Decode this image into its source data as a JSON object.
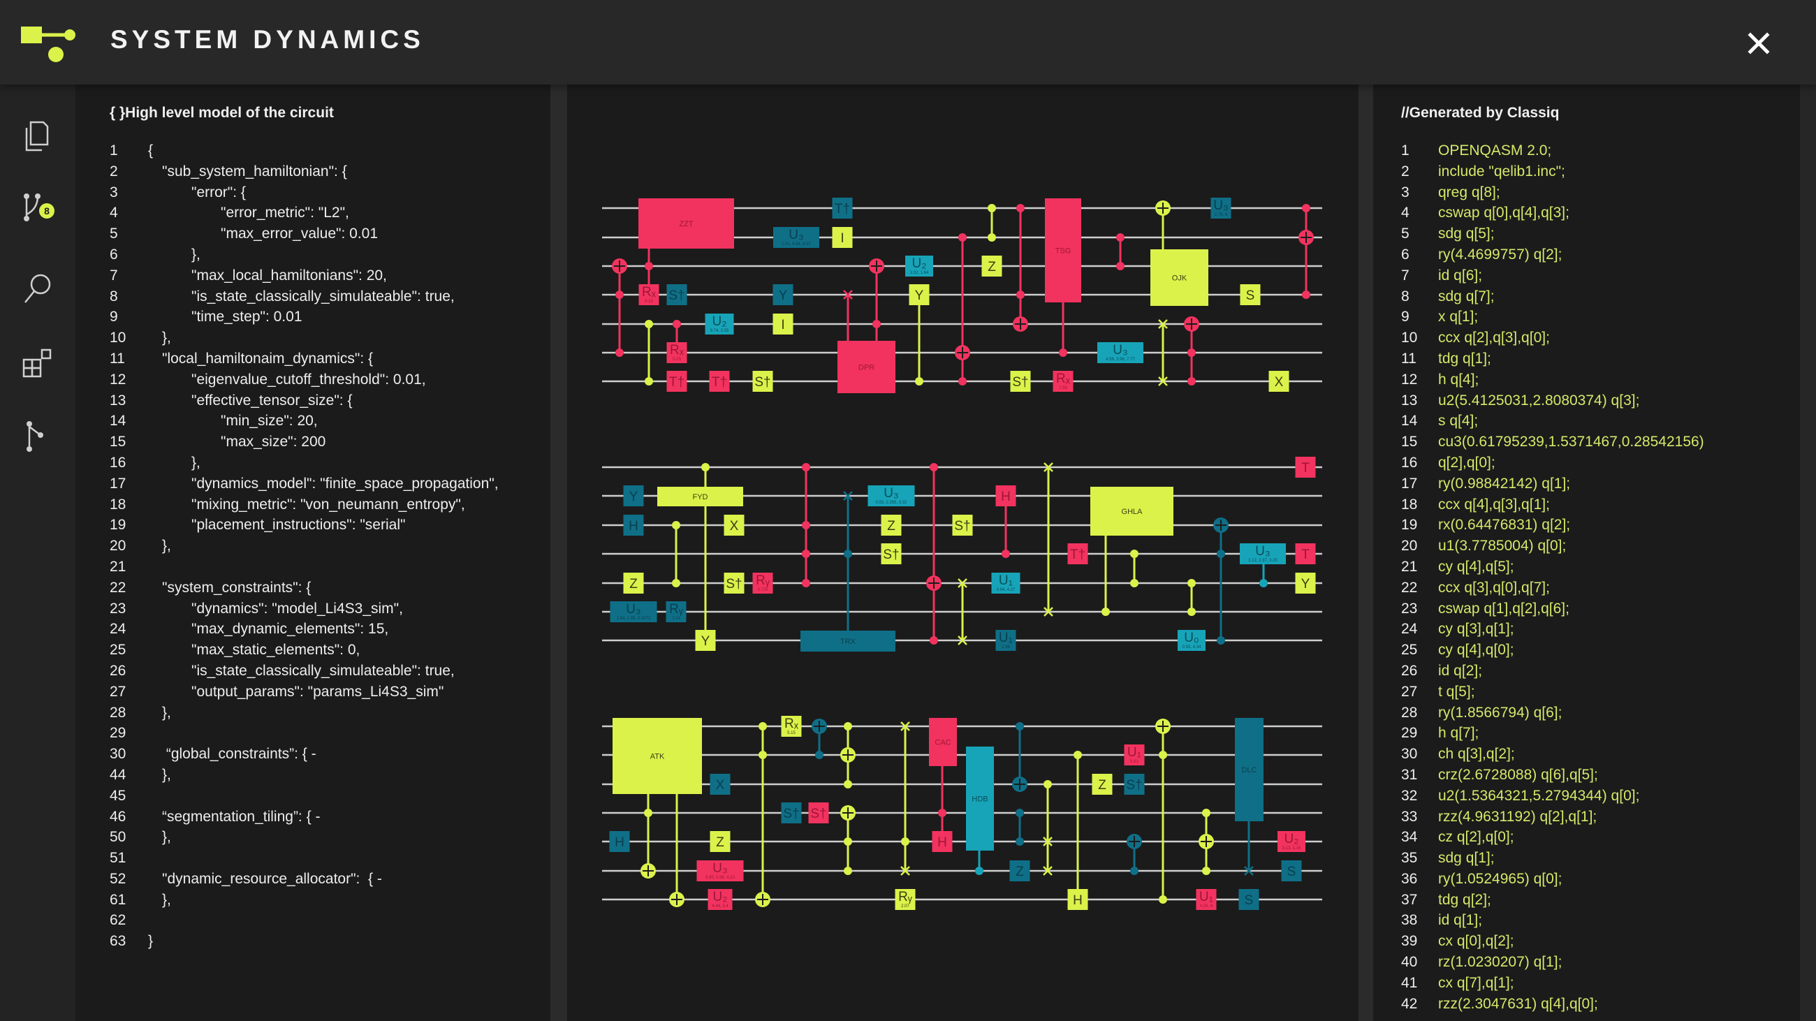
{
  "app": {
    "title": "SYSTEM DYNAMICS",
    "close_icon": "close-icon"
  },
  "colors": {
    "accent": "#dbf24a",
    "pink": "#f2335f",
    "lime": "#dbf24a",
    "teal": "#0f6f87",
    "cyan": "#17a4b8"
  },
  "sidebar": {
    "items": [
      {
        "name": "documents",
        "icon": "documents-icon"
      },
      {
        "name": "branches",
        "icon": "branch-icon",
        "badge": "8"
      },
      {
        "name": "search",
        "icon": "search-icon"
      },
      {
        "name": "widgets",
        "icon": "widgets-icon"
      },
      {
        "name": "fork",
        "icon": "fork-icon"
      }
    ]
  },
  "left_panel": {
    "title": "{ }High level model of the circuit",
    "lines": [
      {
        "n": "1",
        "indent": 0,
        "text": "{"
      },
      {
        "n": "2",
        "indent": 1,
        "text": "\"sub_system_hamiltonian\": {"
      },
      {
        "n": "3",
        "indent": 2,
        "text": "\"error\": {"
      },
      {
        "n": "4",
        "indent": 3,
        "text": "\"error_metric\": \"L2\","
      },
      {
        "n": "5",
        "indent": 3,
        "text": "\"max_error_value\": 0.01"
      },
      {
        "n": "6",
        "indent": 2,
        "text": "},"
      },
      {
        "n": "7",
        "indent": 2,
        "text": "\"max_local_hamiltonians\": 20,"
      },
      {
        "n": "8",
        "indent": 2,
        "text": "\"is_state_classically_simulateable\": true,"
      },
      {
        "n": "9",
        "indent": 2,
        "text": "\"time_step\": 0.01"
      },
      {
        "n": "10",
        "indent": 1,
        "text": "},"
      },
      {
        "n": "11",
        "indent": 1,
        "text": "\"local_hamiltonaim_dynamics\": {"
      },
      {
        "n": "12",
        "indent": 2,
        "text": "\"eigenvalue_cutoff_threshold\": 0.01,"
      },
      {
        "n": "13",
        "indent": 2,
        "text": "\"effective_tensor_size\": {"
      },
      {
        "n": "14",
        "indent": 3,
        "text": "\"min_size\": 20,"
      },
      {
        "n": "15",
        "indent": 3,
        "text": "\"max_size\": 200"
      },
      {
        "n": "16",
        "indent": 2,
        "text": "},"
      },
      {
        "n": "17",
        "indent": 2,
        "text": "\"dynamics_model\": \"finite_space_propagation\","
      },
      {
        "n": "18",
        "indent": 2,
        "text": "\"mixing_metric\": \"von_neumann_entropy\","
      },
      {
        "n": "19",
        "indent": 2,
        "text": "\"placement_instructions\": \"serial\""
      },
      {
        "n": "20",
        "indent": 1,
        "text": "},"
      },
      {
        "n": "21",
        "indent": 1,
        "text": ""
      },
      {
        "n": "22",
        "indent": 1,
        "text": "\"system_constraints\": {"
      },
      {
        "n": "23",
        "indent": 2,
        "text": "\"dynamics\": \"model_Li4S3_sim\","
      },
      {
        "n": "24",
        "indent": 2,
        "text": "\"max_dynamic_elements\": 15,"
      },
      {
        "n": "25",
        "indent": 2,
        "text": "\"max_static_elements\": 0,"
      },
      {
        "n": "26",
        "indent": 2,
        "text": "\"is_state_classically_simulateable\": true,"
      },
      {
        "n": "27",
        "indent": 2,
        "text": "\"output_params\": \"params_Li4S3_sim\""
      },
      {
        "n": "28",
        "indent": 1,
        "text": "},"
      },
      {
        "n": "29",
        "indent": 1,
        "text": ""
      },
      {
        "n": "30",
        "indent": 1,
        "text": " “global_constraints”: { -"
      },
      {
        "n": "44",
        "indent": 1,
        "text": "},"
      },
      {
        "n": "45",
        "indent": 1,
        "text": ""
      },
      {
        "n": "46",
        "indent": 1,
        "text": "“segmentation_tiling”: { -"
      },
      {
        "n": "50",
        "indent": 1,
        "text": "},"
      },
      {
        "n": "51",
        "indent": 1,
        "text": ""
      },
      {
        "n": "52",
        "indent": 1,
        "text": "\"dynamic_resource_allocator\":  { -"
      },
      {
        "n": "61",
        "indent": 1,
        "text": "},"
      },
      {
        "n": "62",
        "indent": 1,
        "text": ""
      },
      {
        "n": "63",
        "indent": 0,
        "text": "}"
      }
    ]
  },
  "right_panel": {
    "title": "//Generated by Classiq",
    "lines": [
      {
        "n": "1",
        "text": "OPENQASM 2.0;"
      },
      {
        "n": "2",
        "text": "include \"qelib1.inc\";"
      },
      {
        "n": "3",
        "text": "qreg q[8];"
      },
      {
        "n": "4",
        "text": "cswap q[0],q[4],q[3];"
      },
      {
        "n": "5",
        "text": "sdg q[5];"
      },
      {
        "n": "6",
        "text": "ry(4.4699757) q[2];"
      },
      {
        "n": "7",
        "text": "id q[6];"
      },
      {
        "n": "8",
        "text": "sdg q[7];"
      },
      {
        "n": "9",
        "text": "x q[1];"
      },
      {
        "n": "10",
        "text": "ccx q[2],q[3],q[0];"
      },
      {
        "n": "11",
        "text": "tdg q[1];"
      },
      {
        "n": "12",
        "text": "h q[4];"
      },
      {
        "n": "13",
        "text": "u2(5.4125031,2.8080374) q[3];"
      },
      {
        "n": "14",
        "text": "s q[4];"
      },
      {
        "n": "15",
        "text": "cu3(0.61795239,1.5371467,0.28542156)"
      },
      {
        "n": "16",
        "text": "q[2],q[0];"
      },
      {
        "n": "17",
        "text": "ry(0.98842142) q[1];"
      },
      {
        "n": "18",
        "text": "ccx q[4],q[3],q[1];"
      },
      {
        "n": "19",
        "text": "rx(0.64476831) q[2];"
      },
      {
        "n": "20",
        "text": "u1(3.7785004) q[0];"
      },
      {
        "n": "21",
        "text": "cy q[4],q[5];"
      },
      {
        "n": "22",
        "text": "ccx q[3],q[0],q[7];"
      },
      {
        "n": "23",
        "text": "cswap q[1],q[2],q[6];"
      },
      {
        "n": "24",
        "text": "cy q[3],q[1];"
      },
      {
        "n": "25",
        "text": "cy q[4],q[0];"
      },
      {
        "n": "26",
        "text": "id q[2];"
      },
      {
        "n": "27",
        "text": "t q[5];"
      },
      {
        "n": "28",
        "text": "ry(1.8566794) q[6];"
      },
      {
        "n": "29",
        "text": "h q[7];"
      },
      {
        "n": "30",
        "text": "ch q[3],q[2];"
      },
      {
        "n": "31",
        "text": "crz(2.6728088) q[6],q[5];"
      },
      {
        "n": "32",
        "text": "u2(1.5364321,5.2794344) q[0];"
      },
      {
        "n": "33",
        "text": "rzz(4.9631192) q[2],q[1];"
      },
      {
        "n": "34",
        "text": "cz q[2],q[0];"
      },
      {
        "n": "35",
        "text": "sdg q[1];"
      },
      {
        "n": "36",
        "text": "ry(1.0524965) q[0];"
      },
      {
        "n": "37",
        "text": "tdg q[2];"
      },
      {
        "n": "38",
        "text": "id q[1];"
      },
      {
        "n": "39",
        "text": "cx q[0],q[2];"
      },
      {
        "n": "40",
        "text": "rz(1.0230207) q[1];"
      },
      {
        "n": "41",
        "text": "cx q[7],q[1];"
      },
      {
        "n": "42",
        "text": "rzz(2.3047631) q[4],q[0];"
      }
    ]
  },
  "circuit": {
    "blocks": [
      {
        "gates": [
          {
            "label": "ZZT",
            "sub": ""
          },
          {
            "label": "Rₓ",
            "sub": "9.23"
          },
          {
            "label": "S†",
            "sub": ""
          },
          {
            "label": "Rₓ",
            "sub": "5.23"
          },
          {
            "label": "T†",
            "sub": ""
          },
          {
            "label": "U₂",
            "sub": "9.74, 3.55"
          },
          {
            "label": "T†",
            "sub": ""
          },
          {
            "label": "S†",
            "sub": ""
          },
          {
            "label": "U₃",
            "sub": "1.91, 9.94, 8.57"
          },
          {
            "label": "Y",
            "sub": ""
          },
          {
            "label": "I",
            "sub": ""
          },
          {
            "label": "T†",
            "sub": ""
          },
          {
            "label": "I",
            "sub": ""
          },
          {
            "label": "DPR",
            "sub": ""
          },
          {
            "label": "U₂",
            "sub": "3.02, 1.64"
          },
          {
            "label": "Y",
            "sub": ""
          },
          {
            "label": "Z",
            "sub": ""
          },
          {
            "label": "S†",
            "sub": ""
          },
          {
            "label": "TSG",
            "sub": ""
          },
          {
            "label": "Rₓ",
            "sub": "7.55"
          },
          {
            "label": "U₃",
            "sub": "4.56, 3.96, 7.77"
          },
          {
            "label": "OJK",
            "sub": ""
          },
          {
            "label": "U₃",
            "sub": "2.79, 6"
          },
          {
            "label": "S",
            "sub": ""
          },
          {
            "label": "X",
            "sub": ""
          }
        ]
      },
      {
        "gates": [
          {
            "label": "Y",
            "sub": ""
          },
          {
            "label": "H",
            "sub": ""
          },
          {
            "label": "Z",
            "sub": ""
          },
          {
            "label": "U₃",
            "sub": "1.54, 1.55, 0.0372"
          },
          {
            "label": "FYD",
            "sub": ""
          },
          {
            "label": "Rᵧ",
            "sub": "2.24"
          },
          {
            "label": "Y",
            "sub": ""
          },
          {
            "label": "X",
            "sub": ""
          },
          {
            "label": "S†",
            "sub": ""
          },
          {
            "label": "Rᵧ",
            "sub": "0.725"
          },
          {
            "label": "TRX",
            "sub": ""
          },
          {
            "label": "U₃",
            "sub": "0.53, 2.265, 3.32"
          },
          {
            "label": "Z",
            "sub": ""
          },
          {
            "label": "S†",
            "sub": ""
          },
          {
            "label": "S†",
            "sub": ""
          },
          {
            "label": "H",
            "sub": ""
          },
          {
            "label": "U₁",
            "sub": "0.94, 4.27"
          },
          {
            "label": "U₁",
            "sub": "2.96"
          },
          {
            "label": "T†",
            "sub": ""
          },
          {
            "label": "GHLA",
            "sub": ""
          },
          {
            "label": "U₀",
            "sub": "0.93, 4.34"
          },
          {
            "label": "U₃",
            "sub": "1.12, 2.37, 3.25"
          },
          {
            "label": "T",
            "sub": ""
          },
          {
            "label": "T",
            "sub": ""
          },
          {
            "label": "Y",
            "sub": ""
          }
        ]
      },
      {
        "gates": [
          {
            "label": "ATK",
            "sub": ""
          },
          {
            "label": "H",
            "sub": ""
          },
          {
            "label": "X",
            "sub": ""
          },
          {
            "label": "Z",
            "sub": ""
          },
          {
            "label": "U₃",
            "sub": "5.85, 5.56, 4.23"
          },
          {
            "label": "U₂",
            "sub": "6.44, 3.4"
          },
          {
            "label": "Rₓ",
            "sub": "5.15"
          },
          {
            "label": "S†",
            "sub": ""
          },
          {
            "label": "S†",
            "sub": ""
          },
          {
            "label": "Rᵧ",
            "sub": "2.07"
          },
          {
            "label": "CAC",
            "sub": ""
          },
          {
            "label": "H",
            "sub": ""
          },
          {
            "label": "HDB",
            "sub": ""
          },
          {
            "label": "Z",
            "sub": ""
          },
          {
            "label": "H",
            "sub": ""
          },
          {
            "label": "Z",
            "sub": ""
          },
          {
            "label": "U₁",
            "sub": "5.61"
          },
          {
            "label": "S†",
            "sub": ""
          },
          {
            "label": "U₁",
            "sub": "4.25, 6"
          },
          {
            "label": "DLC",
            "sub": ""
          },
          {
            "label": "S",
            "sub": ""
          },
          {
            "label": "U₂",
            "sub": "3.13, 1.16"
          },
          {
            "label": "S",
            "sub": ""
          }
        ]
      }
    ]
  }
}
